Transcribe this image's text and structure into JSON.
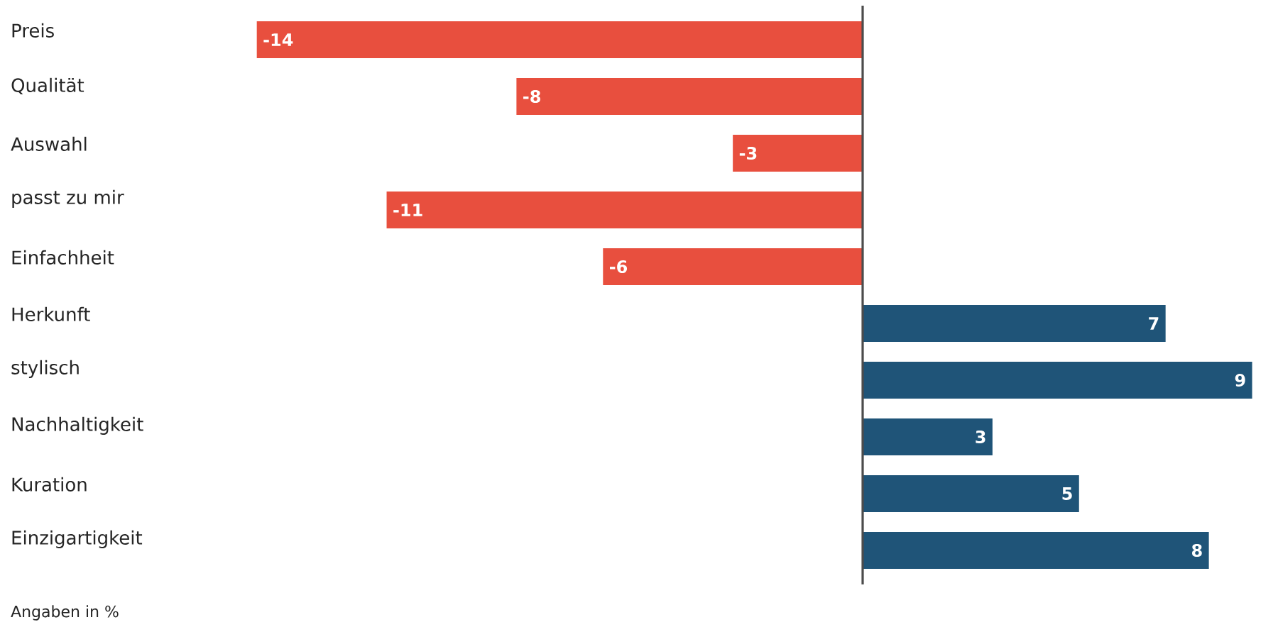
{
  "chart_data": {
    "type": "bar",
    "orientation": "horizontal",
    "categories": [
      "Preis",
      "Qualität",
      "Auswahl",
      "passt zu mir",
      "Einfachheit",
      "Herkunft",
      "stylisch",
      "Nachhaltigkeit",
      "Kuration",
      "Einzigartigkeit"
    ],
    "values": [
      -14,
      -8,
      -3,
      -11,
      -6,
      7,
      9,
      3,
      5,
      8
    ],
    "colors": [
      "#e84f3e",
      "#e84f3e",
      "#e84f3e",
      "#e84f3e",
      "#e84f3e",
      "#1f5478",
      "#1f5478",
      "#1f5478",
      "#1f5478",
      "#1f5478"
    ],
    "data_labels": true,
    "annotations": [
      "Angaben in %"
    ]
  }
}
